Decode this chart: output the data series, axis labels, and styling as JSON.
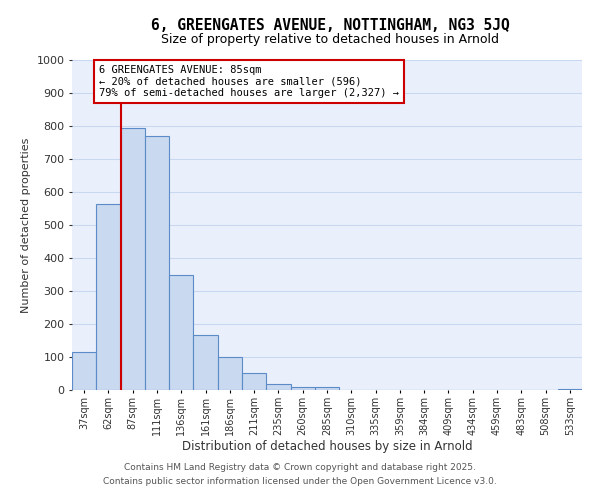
{
  "title": "6, GREENGATES AVENUE, NOTTINGHAM, NG3 5JQ",
  "subtitle": "Size of property relative to detached houses in Arnold",
  "xlabel": "Distribution of detached houses by size in Arnold",
  "ylabel": "Number of detached properties",
  "bar_labels": [
    "37sqm",
    "62sqm",
    "87sqm",
    "111sqm",
    "136sqm",
    "161sqm",
    "186sqm",
    "211sqm",
    "235sqm",
    "260sqm",
    "285sqm",
    "310sqm",
    "335sqm",
    "359sqm",
    "384sqm",
    "409sqm",
    "434sqm",
    "459sqm",
    "483sqm",
    "508sqm",
    "533sqm"
  ],
  "bar_values": [
    115,
    565,
    795,
    770,
    350,
    168,
    100,
    53,
    18,
    10,
    8,
    0,
    0,
    0,
    0,
    0,
    0,
    0,
    0,
    0,
    3
  ],
  "bar_color": "#c9d9f0",
  "bar_edge_color": "#5b8cc8",
  "vline_index": 2,
  "vline_color": "#cc0000",
  "annotation_box_text": "6 GREENGATES AVENUE: 85sqm\n← 20% of detached houses are smaller (596)\n79% of semi-detached houses are larger (2,327) →",
  "annotation_box_color": "#cc0000",
  "ylim": [
    0,
    1000
  ],
  "yticks": [
    0,
    100,
    200,
    300,
    400,
    500,
    600,
    700,
    800,
    900,
    1000
  ],
  "grid_color": "#c8d8f0",
  "bg_color": "#eaf0fb",
  "footer_line1": "Contains HM Land Registry data © Crown copyright and database right 2025.",
  "footer_line2": "Contains public sector information licensed under the Open Government Licence v3.0.",
  "title_fontsize": 10.5,
  "subtitle_fontsize": 9
}
